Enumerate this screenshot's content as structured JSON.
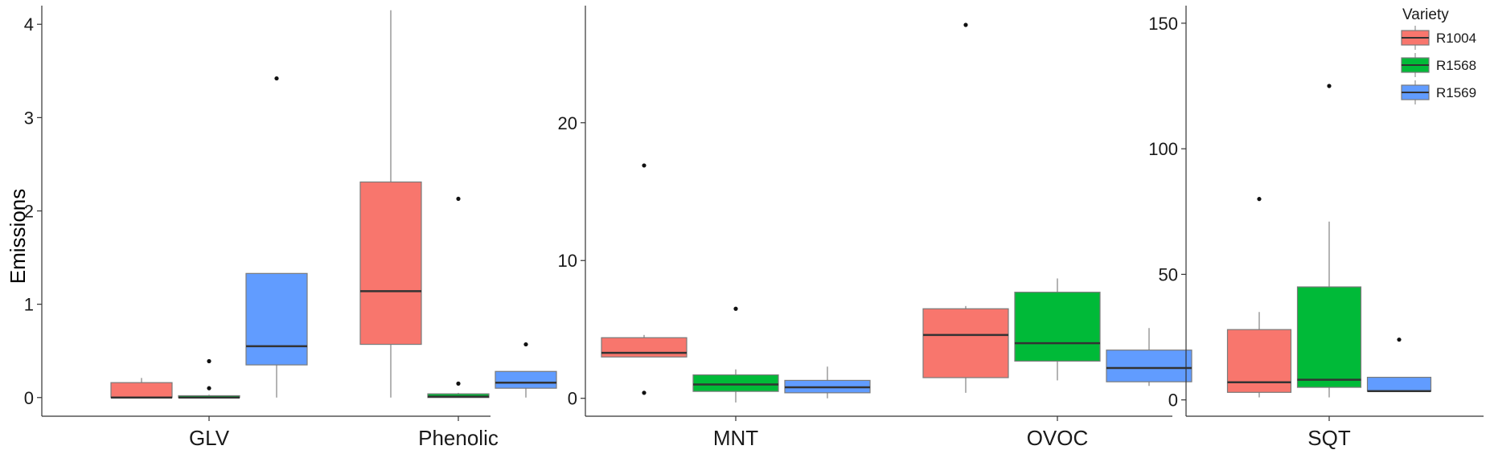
{
  "chart_data": {
    "type": "box",
    "ylabel": "Emissions",
    "legend": {
      "title": "Variety",
      "position": "top-right",
      "entries": [
        {
          "name": "R1004",
          "color": "#F8766D"
        },
        {
          "name": "R1568",
          "color": "#00BA38"
        },
        {
          "name": "R1569",
          "color": "#619CFF"
        }
      ]
    },
    "grid": false,
    "panels": [
      {
        "ylim": [
          -0.2,
          4.2
        ],
        "yticks": [
          "0",
          "1",
          "2",
          "3",
          "4"
        ],
        "yticks_values": [
          0,
          1,
          2,
          3,
          4
        ],
        "categories": [
          "GLV",
          "Phenolic"
        ],
        "boxes": [
          {
            "category": "GLV",
            "series": "R1004",
            "min": 0.0,
            "q1": 0.0,
            "median": 0.0,
            "q3": 0.16,
            "max": 0.21,
            "outliers": []
          },
          {
            "category": "GLV",
            "series": "R1568",
            "min": 0.0,
            "q1": 0.0,
            "median": 0.0,
            "q3": 0.02,
            "max": 0.03,
            "outliers": [
              0.1,
              0.39
            ]
          },
          {
            "category": "GLV",
            "series": "R1569",
            "min": 0.0,
            "q1": 0.35,
            "median": 0.55,
            "q3": 1.33,
            "max": 1.33,
            "outliers": [
              3.42
            ]
          },
          {
            "category": "Phenolic",
            "series": "R1004",
            "min": 0.0,
            "q1": 0.57,
            "median": 1.14,
            "q3": 2.31,
            "max": 4.15,
            "outliers": []
          },
          {
            "category": "Phenolic",
            "series": "R1568",
            "min": 0.0,
            "q1": 0.0,
            "median": 0.01,
            "q3": 0.04,
            "max": 0.05,
            "outliers": [
              0.15,
              2.13
            ]
          },
          {
            "category": "Phenolic",
            "series": "R1569",
            "min": 0.0,
            "q1": 0.1,
            "median": 0.16,
            "q3": 0.28,
            "max": 0.28,
            "outliers": [
              0.57
            ]
          }
        ]
      },
      {
        "ylim": [
          -1.3,
          28.5
        ],
        "yticks": [
          "0",
          "10",
          "20"
        ],
        "yticks_values": [
          0,
          10,
          20
        ],
        "categories": [
          "MNT",
          "OVOC"
        ],
        "boxes": [
          {
            "category": "MNT",
            "series": "R1004",
            "min": 3.0,
            "q1": 3.0,
            "median": 3.3,
            "q3": 4.4,
            "max": 4.6,
            "outliers": [
              0.4,
              16.9
            ]
          },
          {
            "category": "MNT",
            "series": "R1568",
            "min": -0.3,
            "q1": 0.5,
            "median": 1.0,
            "q3": 1.7,
            "max": 2.1,
            "outliers": [
              6.5
            ]
          },
          {
            "category": "MNT",
            "series": "R1569",
            "min": 0.0,
            "q1": 0.4,
            "median": 0.8,
            "q3": 1.3,
            "max": 2.3,
            "outliers": []
          },
          {
            "category": "OVOC",
            "series": "R1004",
            "min": 0.4,
            "q1": 1.5,
            "median": 4.6,
            "q3": 6.5,
            "max": 6.7,
            "outliers": [
              27.1
            ]
          },
          {
            "category": "OVOC",
            "series": "R1568",
            "min": 1.3,
            "q1": 2.7,
            "median": 4.0,
            "q3": 7.7,
            "max": 8.7,
            "outliers": []
          },
          {
            "category": "OVOC",
            "series": "R1569",
            "min": 0.9,
            "q1": 1.2,
            "median": 2.2,
            "q3": 3.5,
            "max": 5.1,
            "outliers": []
          }
        ]
      },
      {
        "ylim": [
          -6.5,
          157
        ],
        "yticks": [
          "0",
          "50",
          "100",
          "150"
        ],
        "yticks_values": [
          0,
          50,
          100,
          150
        ],
        "categories": [
          "SQT"
        ],
        "boxes": [
          {
            "category": "SQT",
            "series": "R1004",
            "min": 1.0,
            "q1": 3.0,
            "median": 7.0,
            "q3": 28.0,
            "max": 35.0,
            "outliers": [
              80.0
            ]
          },
          {
            "category": "SQT",
            "series": "R1568",
            "min": 1.0,
            "q1": 5.0,
            "median": 8.0,
            "q3": 45.0,
            "max": 71.0,
            "outliers": [
              125.0
            ]
          },
          {
            "category": "SQT",
            "series": "R1569",
            "min": 3.5,
            "q1": 3.5,
            "median": 3.5,
            "q3": 9.0,
            "max": 9.0,
            "outliers": [
              24.0
            ]
          }
        ]
      }
    ]
  }
}
